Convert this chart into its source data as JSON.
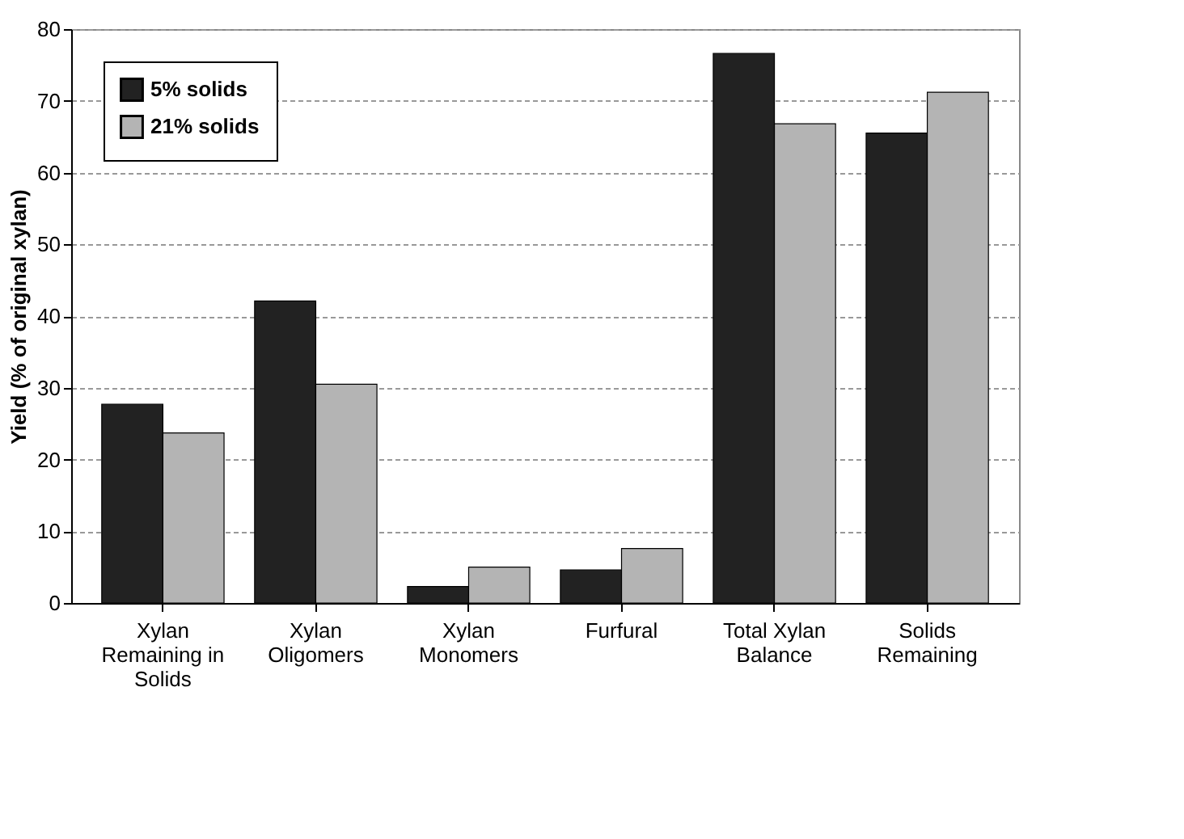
{
  "chart_data": {
    "type": "bar",
    "ylabel": "Yield (% of original xylan)",
    "categories": [
      "Xylan Remaining in Solids",
      "Xylan Oligomers",
      "Xylan Monomers",
      "Furfural",
      "Total Xylan Balance",
      "Solids Remaining"
    ],
    "series": [
      {
        "name": "5% solids",
        "color": "#222222",
        "values": [
          27.7,
          42.1,
          2.3,
          4.6,
          76.6,
          65.5
        ]
      },
      {
        "name": "21% solids",
        "color": "#b4b4b4",
        "values": [
          23.7,
          30.5,
          5.0,
          7.6,
          66.8,
          71.2
        ]
      }
    ],
    "ylim": [
      0,
      80
    ],
    "yticks": [
      0,
      10,
      20,
      30,
      40,
      50,
      60,
      70,
      80
    ],
    "grid": "y",
    "legend": "top left"
  }
}
